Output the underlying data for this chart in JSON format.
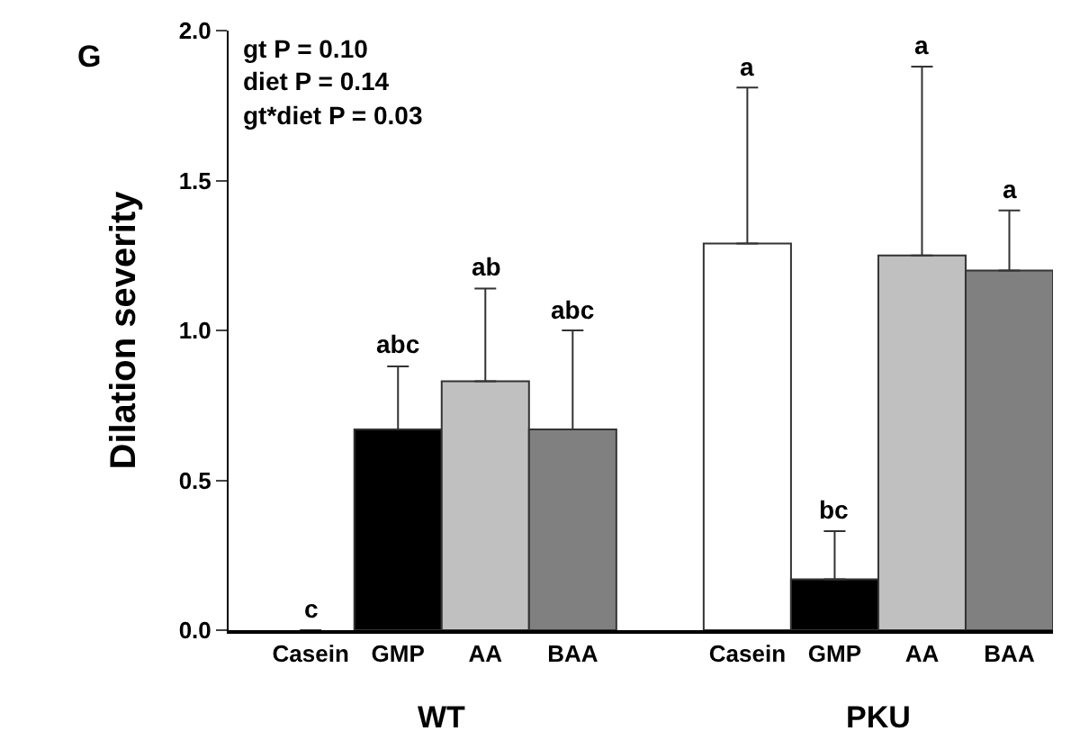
{
  "chart_data": {
    "type": "bar",
    "ylabel": "Dilation severity",
    "categories": [
      "Casein",
      "GMP",
      "AA",
      "BAA",
      null,
      "Casein",
      "GMP",
      "AA",
      "BAA"
    ],
    "values": [
      0,
      0.67,
      0.83,
      0.67,
      null,
      1.29,
      0.17,
      1.25,
      1.2
    ],
    "colors": [
      "#ffffff",
      "#000000",
      "#c0c0c0",
      "#808080",
      "#ffffff",
      "#ffffff",
      "#000000",
      "#c0c0c0",
      "#808080"
    ],
    "errors": [
      null,
      [
        0.67,
        0.88
      ],
      [
        0.83,
        1.14
      ],
      [
        0.67,
        1.0
      ],
      null,
      [
        1.29,
        1.81
      ],
      [
        0.17,
        0.33
      ],
      [
        1.25,
        1.88
      ],
      [
        1.2,
        1.4
      ]
    ],
    "ylim": [
      0,
      2
    ],
    "yticks": [
      {
        "value": 0,
        "label": "0.0"
      },
      {
        "value": 0.5,
        "label": "0.5"
      },
      {
        "value": 1,
        "label": "1.0"
      },
      {
        "value": 1.5,
        "label": "1.5"
      },
      {
        "value": 2,
        "label": "2.0"
      }
    ],
    "grid": false,
    "annotations": [
      "G",
      "gt P = 0.10",
      "diet P = 0.14",
      "gt*diet P = 0.03",
      "WT",
      "PKU",
      {
        "text": "c",
        "y": 0
      },
      {
        "text": "abc",
        "y": 0.88
      },
      {
        "text": "ab",
        "y": 1.14
      },
      {
        "text": "abc",
        "y": 1.0
      },
      {
        "text": "a",
        "y": 1.81
      },
      {
        "text": "bc",
        "y": 0.33
      },
      {
        "text": "a",
        "y": 1.88
      },
      {
        "text": "a",
        "y": 1.4
      }
    ]
  }
}
